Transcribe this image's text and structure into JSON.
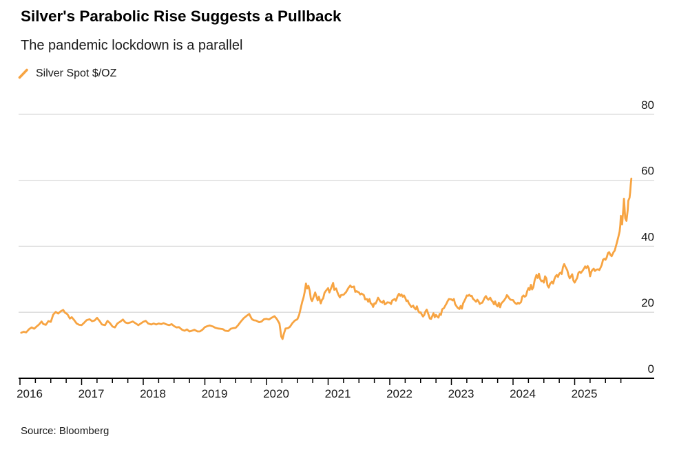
{
  "header": {
    "title": "Silver's Parabolic Rise Suggests a Pullback",
    "subtitle": "The pandemic lockdown is a parallel"
  },
  "legend": {
    "series_label": "Silver Spot $/OZ"
  },
  "footer": {
    "source": "Source: Bloomberg"
  },
  "colors": {
    "series": "#F7A442",
    "grid": "#D9D9D9",
    "axis": "#000000",
    "text": "#191919"
  },
  "chart_data": {
    "type": "line",
    "title": "Silver's Parabolic Rise Suggests a Pullback",
    "subtitle": "The pandemic lockdown is a parallel",
    "series_name": "Silver Spot $/OZ",
    "xlabel": "",
    "ylabel": "Silver Spot $/OZ",
    "xlim": [
      2016.0,
      2026.0
    ],
    "ylim": [
      0,
      80
    ],
    "y_ticks": [
      0,
      20,
      40,
      60,
      80
    ],
    "y_axis_side": "right",
    "x_tick_labels": [
      "2016",
      "2017",
      "2018",
      "2019",
      "2020",
      "2021",
      "2022",
      "2023",
      "2024",
      "2025"
    ],
    "x_minor_ticks": "quarterly",
    "grid": "horizontal",
    "legend_position": "top-left",
    "points": [
      [
        2016.02,
        13.8
      ],
      [
        2016.06,
        14.1
      ],
      [
        2016.1,
        13.9
      ],
      [
        2016.15,
        14.9
      ],
      [
        2016.19,
        15.4
      ],
      [
        2016.23,
        15.0
      ],
      [
        2016.27,
        15.7
      ],
      [
        2016.31,
        16.3
      ],
      [
        2016.35,
        17.2
      ],
      [
        2016.38,
        16.4
      ],
      [
        2016.42,
        16.2
      ],
      [
        2016.46,
        17.3
      ],
      [
        2016.5,
        17.1
      ],
      [
        2016.54,
        19.3
      ],
      [
        2016.58,
        20.1
      ],
      [
        2016.62,
        19.6
      ],
      [
        2016.66,
        20.3
      ],
      [
        2016.7,
        20.7
      ],
      [
        2016.73,
        19.9
      ],
      [
        2016.77,
        19.4
      ],
      [
        2016.81,
        18.1
      ],
      [
        2016.84,
        18.5
      ],
      [
        2016.88,
        17.6
      ],
      [
        2016.92,
        16.6
      ],
      [
        2016.96,
        16.2
      ],
      [
        2017.0,
        16.1
      ],
      [
        2017.04,
        16.8
      ],
      [
        2017.08,
        17.6
      ],
      [
        2017.13,
        17.9
      ],
      [
        2017.17,
        17.3
      ],
      [
        2017.21,
        17.5
      ],
      [
        2017.25,
        18.3
      ],
      [
        2017.29,
        17.4
      ],
      [
        2017.33,
        16.3
      ],
      [
        2017.38,
        16.1
      ],
      [
        2017.42,
        17.4
      ],
      [
        2017.46,
        16.7
      ],
      [
        2017.5,
        15.7
      ],
      [
        2017.54,
        15.4
      ],
      [
        2017.58,
        16.6
      ],
      [
        2017.63,
        17.2
      ],
      [
        2017.67,
        17.8
      ],
      [
        2017.71,
        16.9
      ],
      [
        2017.75,
        16.7
      ],
      [
        2017.79,
        16.9
      ],
      [
        2017.83,
        17.2
      ],
      [
        2017.88,
        16.6
      ],
      [
        2017.92,
        16.1
      ],
      [
        2017.96,
        16.6
      ],
      [
        2018.0,
        17.1
      ],
      [
        2018.04,
        17.4
      ],
      [
        2018.08,
        16.6
      ],
      [
        2018.13,
        16.3
      ],
      [
        2018.17,
        16.6
      ],
      [
        2018.21,
        16.3
      ],
      [
        2018.25,
        16.6
      ],
      [
        2018.29,
        16.4
      ],
      [
        2018.33,
        16.7
      ],
      [
        2018.38,
        16.3
      ],
      [
        2018.42,
        16.1
      ],
      [
        2018.46,
        16.4
      ],
      [
        2018.5,
        15.8
      ],
      [
        2018.54,
        15.4
      ],
      [
        2018.58,
        15.5
      ],
      [
        2018.63,
        14.7
      ],
      [
        2018.67,
        14.4
      ],
      [
        2018.71,
        14.8
      ],
      [
        2018.75,
        14.2
      ],
      [
        2018.79,
        14.4
      ],
      [
        2018.83,
        14.7
      ],
      [
        2018.88,
        14.2
      ],
      [
        2018.92,
        14.2
      ],
      [
        2018.96,
        14.7
      ],
      [
        2019.0,
        15.5
      ],
      [
        2019.04,
        15.8
      ],
      [
        2019.08,
        16.0
      ],
      [
        2019.13,
        15.7
      ],
      [
        2019.17,
        15.3
      ],
      [
        2019.21,
        15.1
      ],
      [
        2019.25,
        15.0
      ],
      [
        2019.29,
        14.9
      ],
      [
        2019.33,
        14.4
      ],
      [
        2019.38,
        14.3
      ],
      [
        2019.42,
        15.0
      ],
      [
        2019.46,
        15.2
      ],
      [
        2019.5,
        15.3
      ],
      [
        2019.54,
        16.1
      ],
      [
        2019.58,
        17.1
      ],
      [
        2019.63,
        18.2
      ],
      [
        2019.67,
        18.8
      ],
      [
        2019.72,
        19.5
      ],
      [
        2019.76,
        18.0
      ],
      [
        2019.79,
        17.6
      ],
      [
        2019.83,
        17.5
      ],
      [
        2019.88,
        17.0
      ],
      [
        2019.92,
        17.2
      ],
      [
        2019.96,
        17.9
      ],
      [
        2020.0,
        18.0
      ],
      [
        2020.04,
        17.8
      ],
      [
        2020.08,
        18.3
      ],
      [
        2020.13,
        18.8
      ],
      [
        2020.17,
        17.9
      ],
      [
        2020.21,
        16.6
      ],
      [
        2020.24,
        12.6
      ],
      [
        2020.26,
        11.9
      ],
      [
        2020.28,
        13.4
      ],
      [
        2020.31,
        15.1
      ],
      [
        2020.35,
        15.2
      ],
      [
        2020.38,
        15.6
      ],
      [
        2020.42,
        16.7
      ],
      [
        2020.46,
        17.5
      ],
      [
        2020.5,
        17.9
      ],
      [
        2020.53,
        19.2
      ],
      [
        2020.56,
        21.6
      ],
      [
        2020.58,
        23.2
      ],
      [
        2020.6,
        24.4
      ],
      [
        2020.62,
        26.2
      ],
      [
        2020.64,
        28.7
      ],
      [
        2020.66,
        27.2
      ],
      [
        2020.68,
        28.0
      ],
      [
        2020.7,
        26.6
      ],
      [
        2020.72,
        24.1
      ],
      [
        2020.74,
        23.4
      ],
      [
        2020.76,
        24.4
      ],
      [
        2020.79,
        26.0
      ],
      [
        2020.81,
        24.8
      ],
      [
        2020.83,
        23.6
      ],
      [
        2020.85,
        24.7
      ],
      [
        2020.88,
        22.7
      ],
      [
        2020.9,
        23.8
      ],
      [
        2020.92,
        24.2
      ],
      [
        2020.94,
        25.8
      ],
      [
        2020.96,
        26.4
      ],
      [
        2021.0,
        27.3
      ],
      [
        2021.02,
        26.0
      ],
      [
        2021.04,
        26.9
      ],
      [
        2021.08,
        28.9
      ],
      [
        2021.1,
        26.8
      ],
      [
        2021.13,
        27.2
      ],
      [
        2021.15,
        26.1
      ],
      [
        2021.17,
        25.2
      ],
      [
        2021.19,
        24.5
      ],
      [
        2021.21,
        25.2
      ],
      [
        2021.25,
        25.3
      ],
      [
        2021.29,
        26.1
      ],
      [
        2021.33,
        27.4
      ],
      [
        2021.36,
        28.1
      ],
      [
        2021.38,
        27.6
      ],
      [
        2021.42,
        27.8
      ],
      [
        2021.44,
        26.2
      ],
      [
        2021.46,
        26.4
      ],
      [
        2021.5,
        26.0
      ],
      [
        2021.52,
        25.4
      ],
      [
        2021.54,
        25.7
      ],
      [
        2021.58,
        25.2
      ],
      [
        2021.6,
        23.9
      ],
      [
        2021.63,
        24.0
      ],
      [
        2021.65,
        23.2
      ],
      [
        2021.67,
        24.0
      ],
      [
        2021.69,
        22.7
      ],
      [
        2021.71,
        22.5
      ],
      [
        2021.73,
        21.6
      ],
      [
        2021.75,
        22.7
      ],
      [
        2021.77,
        22.6
      ],
      [
        2021.79,
        23.4
      ],
      [
        2021.81,
        24.4
      ],
      [
        2021.83,
        23.8
      ],
      [
        2021.85,
        23.2
      ],
      [
        2021.88,
        22.9
      ],
      [
        2021.9,
        23.5
      ],
      [
        2021.92,
        22.4
      ],
      [
        2021.94,
        22.6
      ],
      [
        2021.96,
        23.0
      ],
      [
        2022.0,
        22.9
      ],
      [
        2022.02,
        22.5
      ],
      [
        2022.04,
        23.6
      ],
      [
        2022.08,
        24.0
      ],
      [
        2022.1,
        23.5
      ],
      [
        2022.13,
        25.0
      ],
      [
        2022.15,
        25.6
      ],
      [
        2022.17,
        25.0
      ],
      [
        2022.19,
        25.4
      ],
      [
        2022.21,
        24.7
      ],
      [
        2022.23,
        25.1
      ],
      [
        2022.25,
        24.4
      ],
      [
        2022.27,
        23.4
      ],
      [
        2022.29,
        23.6
      ],
      [
        2022.31,
        22.7
      ],
      [
        2022.33,
        22.2
      ],
      [
        2022.35,
        21.6
      ],
      [
        2022.38,
        22.0
      ],
      [
        2022.4,
        21.3
      ],
      [
        2022.42,
        20.9
      ],
      [
        2022.44,
        21.8
      ],
      [
        2022.46,
        20.5
      ],
      [
        2022.48,
        19.9
      ],
      [
        2022.5,
        20.0
      ],
      [
        2022.52,
        19.3
      ],
      [
        2022.54,
        18.7
      ],
      [
        2022.56,
        19.2
      ],
      [
        2022.58,
        20.3
      ],
      [
        2022.6,
        20.8
      ],
      [
        2022.63,
        19.2
      ],
      [
        2022.65,
        18.1
      ],
      [
        2022.67,
        18.0
      ],
      [
        2022.69,
        18.9
      ],
      [
        2022.71,
        19.7
      ],
      [
        2022.73,
        18.5
      ],
      [
        2022.75,
        19.2
      ],
      [
        2022.77,
        18.7
      ],
      [
        2022.79,
        18.4
      ],
      [
        2022.81,
        19.5
      ],
      [
        2022.83,
        19.2
      ],
      [
        2022.85,
        20.9
      ],
      [
        2022.88,
        21.3
      ],
      [
        2022.9,
        22.0
      ],
      [
        2022.92,
        22.6
      ],
      [
        2022.94,
        23.4
      ],
      [
        2022.96,
        24.0
      ],
      [
        2023.0,
        23.9
      ],
      [
        2023.02,
        23.6
      ],
      [
        2023.04,
        24.0
      ],
      [
        2023.06,
        22.5
      ],
      [
        2023.08,
        21.9
      ],
      [
        2023.1,
        21.4
      ],
      [
        2023.13,
        21.0
      ],
      [
        2023.15,
        21.9
      ],
      [
        2023.17,
        21.1
      ],
      [
        2023.19,
        22.7
      ],
      [
        2023.21,
        23.4
      ],
      [
        2023.23,
        24.2
      ],
      [
        2023.25,
        25.1
      ],
      [
        2023.27,
        25.0
      ],
      [
        2023.29,
        25.3
      ],
      [
        2023.31,
        24.9
      ],
      [
        2023.33,
        25.0
      ],
      [
        2023.35,
        24.1
      ],
      [
        2023.38,
        23.6
      ],
      [
        2023.4,
        23.2
      ],
      [
        2023.42,
        23.8
      ],
      [
        2023.44,
        23.3
      ],
      [
        2023.46,
        22.5
      ],
      [
        2023.48,
        22.8
      ],
      [
        2023.5,
        22.9
      ],
      [
        2023.52,
        23.6
      ],
      [
        2023.54,
        24.4
      ],
      [
        2023.56,
        24.9
      ],
      [
        2023.58,
        24.2
      ],
      [
        2023.6,
        23.8
      ],
      [
        2023.63,
        24.4
      ],
      [
        2023.65,
        23.6
      ],
      [
        2023.67,
        23.2
      ],
      [
        2023.69,
        22.4
      ],
      [
        2023.71,
        23.3
      ],
      [
        2023.73,
        22.2
      ],
      [
        2023.75,
        21.8
      ],
      [
        2023.77,
        22.9
      ],
      [
        2023.79,
        21.5
      ],
      [
        2023.81,
        22.7
      ],
      [
        2023.83,
        23.1
      ],
      [
        2023.85,
        23.5
      ],
      [
        2023.88,
        24.3
      ],
      [
        2023.9,
        25.2
      ],
      [
        2023.92,
        24.8
      ],
      [
        2023.94,
        24.2
      ],
      [
        2023.96,
        23.8
      ],
      [
        2024.0,
        23.7
      ],
      [
        2024.02,
        23.1
      ],
      [
        2024.04,
        22.7
      ],
      [
        2024.06,
        22.5
      ],
      [
        2024.08,
        22.9
      ],
      [
        2024.1,
        22.6
      ],
      [
        2024.13,
        23.1
      ],
      [
        2024.15,
        24.7
      ],
      [
        2024.17,
        25.1
      ],
      [
        2024.19,
        24.7
      ],
      [
        2024.21,
        25.0
      ],
      [
        2024.23,
        26.4
      ],
      [
        2024.25,
        27.3
      ],
      [
        2024.27,
        26.8
      ],
      [
        2024.29,
        28.3
      ],
      [
        2024.31,
        26.9
      ],
      [
        2024.33,
        27.6
      ],
      [
        2024.35,
        29.6
      ],
      [
        2024.38,
        31.3
      ],
      [
        2024.4,
        30.4
      ],
      [
        2024.42,
        31.7
      ],
      [
        2024.44,
        30.1
      ],
      [
        2024.46,
        29.4
      ],
      [
        2024.48,
        29.6
      ],
      [
        2024.5,
        29.0
      ],
      [
        2024.52,
        30.9
      ],
      [
        2024.54,
        30.3
      ],
      [
        2024.56,
        28.1
      ],
      [
        2024.58,
        27.5
      ],
      [
        2024.6,
        28.6
      ],
      [
        2024.63,
        29.3
      ],
      [
        2024.65,
        28.7
      ],
      [
        2024.67,
        30.0
      ],
      [
        2024.69,
        30.9
      ],
      [
        2024.71,
        31.3
      ],
      [
        2024.73,
        30.7
      ],
      [
        2024.75,
        31.7
      ],
      [
        2024.77,
        32.0
      ],
      [
        2024.79,
        31.6
      ],
      [
        2024.81,
        33.7
      ],
      [
        2024.83,
        34.6
      ],
      [
        2024.85,
        33.8
      ],
      [
        2024.88,
        32.7
      ],
      [
        2024.9,
        31.2
      ],
      [
        2024.92,
        30.3
      ],
      [
        2024.94,
        30.9
      ],
      [
        2024.96,
        31.5
      ],
      [
        2024.98,
        29.6
      ],
      [
        2025.0,
        29.0
      ],
      [
        2025.02,
        29.7
      ],
      [
        2025.04,
        30.4
      ],
      [
        2025.06,
        31.9
      ],
      [
        2025.08,
        32.3
      ],
      [
        2025.1,
        31.9
      ],
      [
        2025.13,
        32.6
      ],
      [
        2025.15,
        33.2
      ],
      [
        2025.17,
        33.9
      ],
      [
        2025.19,
        33.4
      ],
      [
        2025.21,
        34.0
      ],
      [
        2025.23,
        33.3
      ],
      [
        2025.25,
        30.9
      ],
      [
        2025.27,
        32.3
      ],
      [
        2025.29,
        32.9
      ],
      [
        2025.31,
        33.2
      ],
      [
        2025.33,
        32.5
      ],
      [
        2025.35,
        32.9
      ],
      [
        2025.38,
        33.0
      ],
      [
        2025.4,
        32.8
      ],
      [
        2025.42,
        33.5
      ],
      [
        2025.44,
        34.4
      ],
      [
        2025.46,
        35.9
      ],
      [
        2025.48,
        36.2
      ],
      [
        2025.5,
        35.9
      ],
      [
        2025.52,
        36.6
      ],
      [
        2025.54,
        37.9
      ],
      [
        2025.56,
        38.2
      ],
      [
        2025.58,
        37.4
      ],
      [
        2025.6,
        37.0
      ],
      [
        2025.63,
        38.2
      ],
      [
        2025.65,
        38.7
      ],
      [
        2025.67,
        40.1
      ],
      [
        2025.69,
        41.5
      ],
      [
        2025.71,
        42.9
      ],
      [
        2025.73,
        44.5
      ],
      [
        2025.74,
        46.2
      ],
      [
        2025.75,
        49.2
      ],
      [
        2025.77,
        46.6
      ],
      [
        2025.79,
        51.5
      ],
      [
        2025.8,
        54.4
      ],
      [
        2025.82,
        48.5
      ],
      [
        2025.84,
        47.7
      ],
      [
        2025.86,
        50.9
      ],
      [
        2025.87,
        53.8
      ],
      [
        2025.89,
        54.7
      ],
      [
        2025.9,
        56.4
      ],
      [
        2025.91,
        58.6
      ],
      [
        2025.92,
        60.5
      ]
    ]
  }
}
